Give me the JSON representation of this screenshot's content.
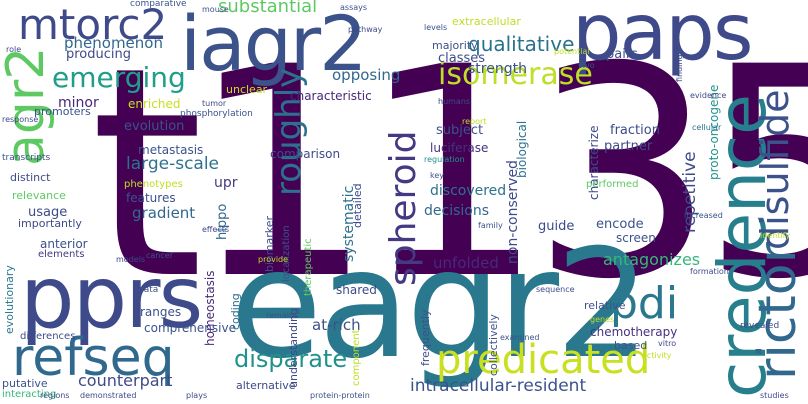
{
  "words": [
    "t1135",
    "eagr2",
    "paps",
    "iagr2",
    "pprs",
    "credence",
    "rictor",
    "disulfide",
    "refseq",
    "agr2",
    "predicated",
    "mtorc2",
    "emerging",
    "isomerase",
    "pdi",
    "spheroid",
    "roughly",
    "substantial",
    "qualitative",
    "disparate",
    "intracellular-resident",
    "counterpart",
    "unfolded",
    "antagonizes",
    "repetitive",
    "luciferase",
    "strength",
    "phenomenon",
    "opposing",
    "classes",
    "majority",
    "extracellular",
    "minor",
    "characteristic",
    "enriched",
    "evolution",
    "metastasis",
    "large-scale",
    "comparison",
    "upr",
    "gradient",
    "usage",
    "decisions",
    "guide",
    "hippo",
    "relevance",
    "importantly",
    "anterior",
    "evolutionary",
    "elements",
    "ranges",
    "comprehensive",
    "at-rich",
    "alternative",
    "chemotherapy",
    "relative",
    "frequently",
    "based",
    "putative",
    "interacting",
    "differences",
    "shared",
    "systematic",
    "discovered",
    "detailed",
    "biomarker",
    "localization",
    "therapeutic",
    "homeostasis",
    "coding",
    "understanding",
    "component",
    "collectively",
    "proto-oncogene",
    "non-conserved",
    "fraction",
    "partner",
    "subject",
    "biological",
    "characterize",
    "performed",
    "pairs",
    "encode",
    "screen",
    "producing",
    "promoters",
    "phenotypes",
    "features",
    "distinct",
    "transcripts",
    "unclear",
    "tumor",
    "phosphorylation",
    "response",
    "mouse",
    "comparative",
    "assays",
    "pathway",
    "levels",
    "potential",
    "vivo",
    "findings",
    "humans",
    "evidence",
    "report",
    "regulation",
    "key",
    "cellular",
    "increased",
    "family",
    "identify",
    "formation",
    "revealed",
    "vitro",
    "studies",
    "demonstrated",
    "plays",
    "regions",
    "protein-protein",
    "examined",
    "remains",
    "genes",
    "sequence",
    "models",
    "cancer",
    "provide",
    "effects",
    "data",
    "role",
    "activity"
  ]
}
